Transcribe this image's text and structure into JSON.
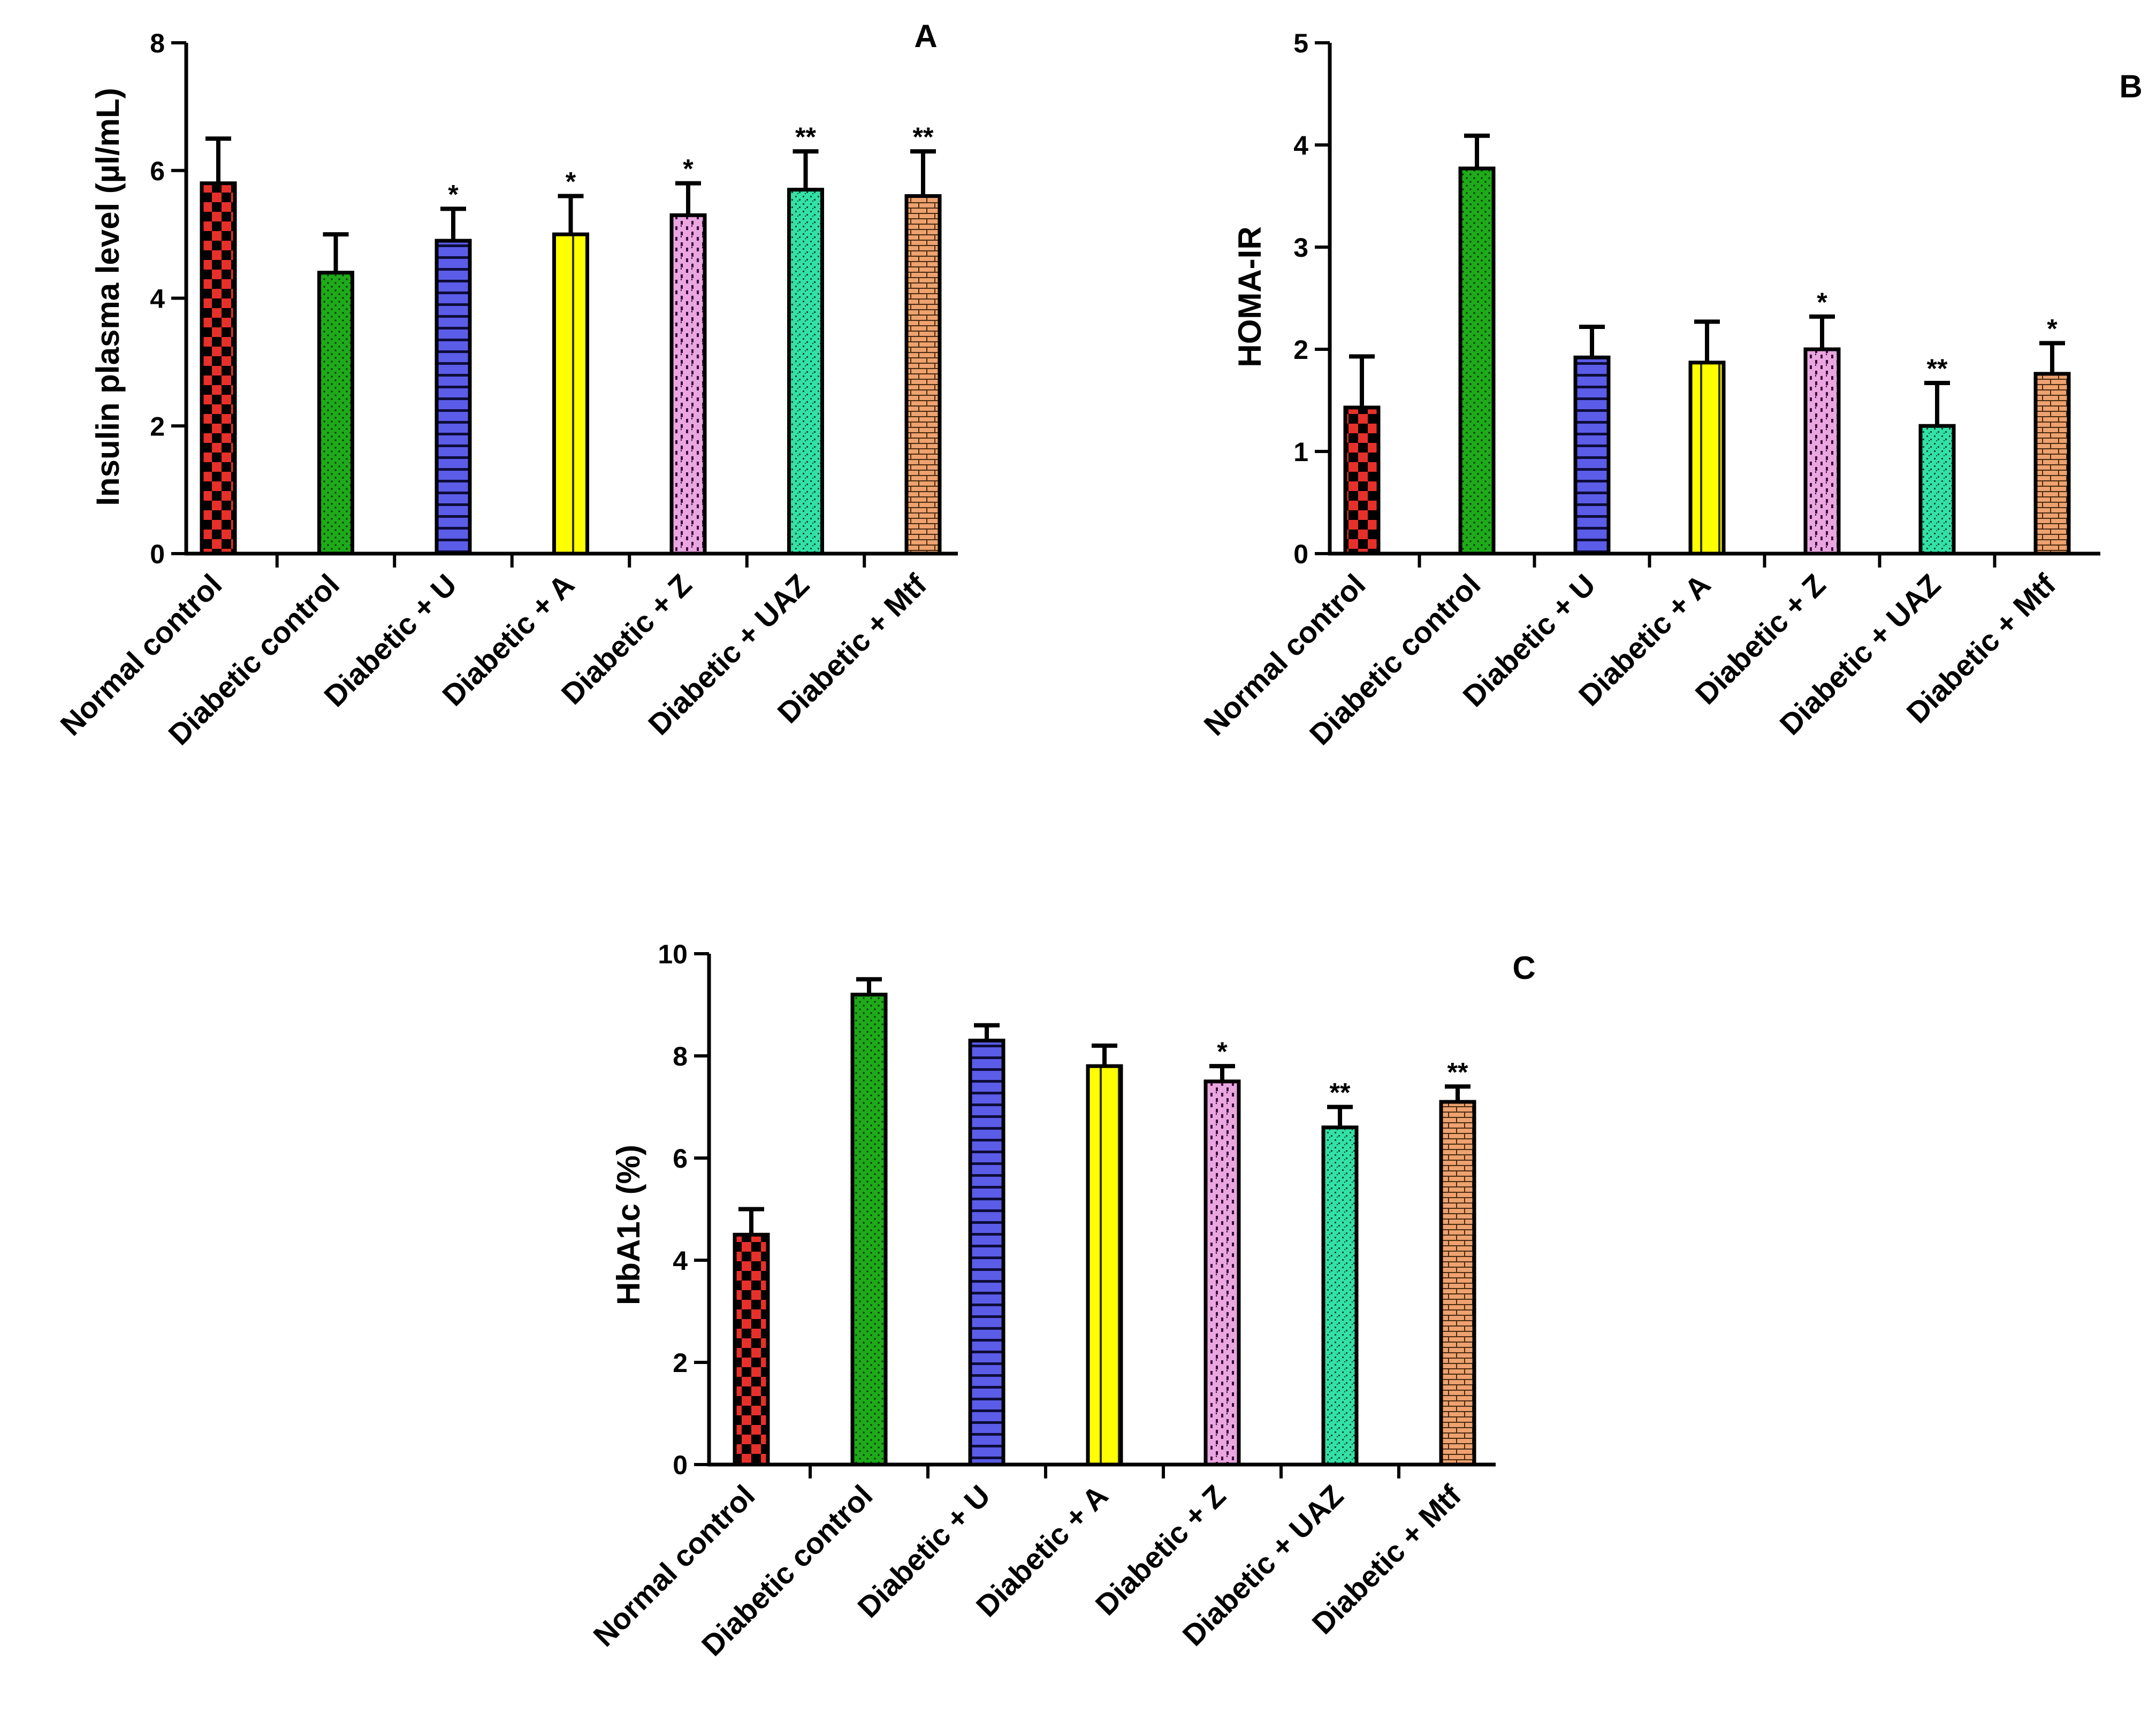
{
  "chart_data": [
    {
      "panel": "A",
      "type": "bar",
      "ylabel": "Insulin plasma level (µl/mL)",
      "ylim": [
        0,
        8
      ],
      "yticks": [
        0,
        2,
        4,
        6,
        8
      ],
      "categories": [
        "Normal control",
        "Diabetic control",
        "Diabetic + U",
        "Diabetic + A",
        "Diabetic + Z",
        "Diabetic + UAZ",
        "Diabetic + Mtf"
      ],
      "values": [
        5.8,
        4.4,
        4.9,
        5.0,
        5.3,
        5.7,
        5.6
      ],
      "errors": [
        0.7,
        0.6,
        0.5,
        0.6,
        0.5,
        0.6,
        0.7
      ],
      "significance": [
        "",
        "",
        "*",
        "*",
        "*",
        "**",
        "**"
      ]
    },
    {
      "panel": "B",
      "type": "bar",
      "ylabel": "HOMA-IR",
      "ylim": [
        0,
        5
      ],
      "yticks": [
        0,
        1,
        2,
        3,
        4,
        5
      ],
      "categories": [
        "Normal control",
        "Diabetic control",
        "Diabetic + U",
        "Diabetic + A",
        "Diabetic + Z",
        "Diabetic + UAZ",
        "Diabetic + Mtf"
      ],
      "values": [
        1.43,
        3.77,
        1.92,
        1.87,
        2.0,
        1.25,
        1.76
      ],
      "errors": [
        0.5,
        0.32,
        0.3,
        0.4,
        0.32,
        0.42,
        0.3
      ],
      "significance": [
        "",
        "",
        "",
        "",
        "*",
        "**",
        "*"
      ]
    },
    {
      "panel": "C",
      "type": "bar",
      "ylabel": "HbA1c (%)",
      "ylim": [
        0,
        10
      ],
      "yticks": [
        0,
        2,
        4,
        6,
        8,
        10
      ],
      "categories": [
        "Normal control",
        "Diabetic control",
        "Diabetic + U",
        "Diabetic + A",
        "Diabetic + Z",
        "Diabetic + UAZ",
        "Diabetic + Mtf"
      ],
      "values": [
        4.5,
        9.2,
        8.3,
        7.8,
        7.5,
        6.6,
        7.1
      ],
      "errors": [
        0.5,
        0.3,
        0.3,
        0.4,
        0.3,
        0.4,
        0.3
      ],
      "significance": [
        "",
        "",
        "",
        "",
        "*",
        "**",
        "**"
      ]
    }
  ],
  "colors": {
    "normal_control": "#e8302a",
    "diabetic_control": "#1faa1a",
    "u": "#5b5ce8",
    "a": "#ffff00",
    "z": "#e9a6e0",
    "uaz": "#33e0a6",
    "mtf": "#eda26f"
  }
}
